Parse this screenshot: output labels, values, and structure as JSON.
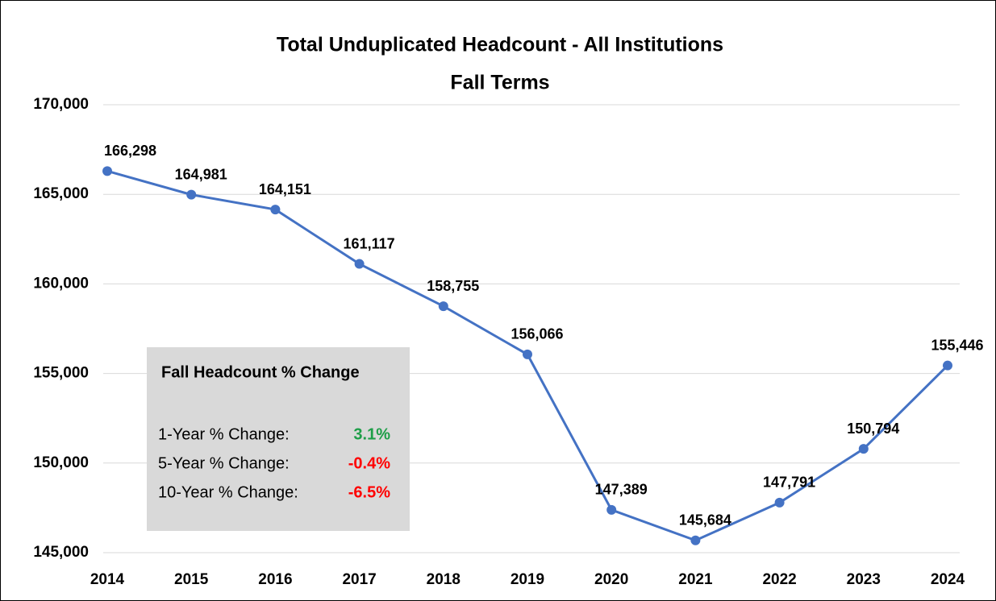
{
  "chart_data": {
    "type": "line",
    "title": "Total Unduplicated Headcount - All Institutions",
    "subtitle": "Fall Terms",
    "categories": [
      "2014",
      "2015",
      "2016",
      "2017",
      "2018",
      "2019",
      "2020",
      "2021",
      "2022",
      "2023",
      "2024"
    ],
    "series": [
      {
        "name": "Headcount",
        "color": "#4472c4",
        "values": [
          166298,
          164981,
          164151,
          161117,
          158755,
          156066,
          147389,
          145684,
          147791,
          150794,
          155446
        ],
        "value_labels": [
          "166,298",
          "164,981",
          "164,151",
          "161,117",
          "158,755",
          "156,066",
          "147,389",
          "145,684",
          "147,791",
          "150,794",
          "155,446"
        ]
      }
    ],
    "ylim": [
      145000,
      170000
    ],
    "yticks": [
      {
        "value": 145000,
        "label": "145,000"
      },
      {
        "value": 150000,
        "label": "150,000"
      },
      {
        "value": 155000,
        "label": "155,000"
      },
      {
        "value": 160000,
        "label": "160,000"
      },
      {
        "value": 165000,
        "label": "165,000"
      },
      {
        "value": 170000,
        "label": "170,000"
      }
    ],
    "grid": true,
    "annotation": {
      "title": "Fall Headcount % Change",
      "rows": [
        {
          "label": "1-Year % Change:",
          "value": "3.1%",
          "color": "#1e9e48"
        },
        {
          "label": "5-Year % Change:",
          "value": "-0.4%",
          "color": "#ff0000"
        },
        {
          "label": "10-Year % Change:",
          "value": "-6.5%",
          "color": "#ff0000"
        }
      ]
    }
  }
}
